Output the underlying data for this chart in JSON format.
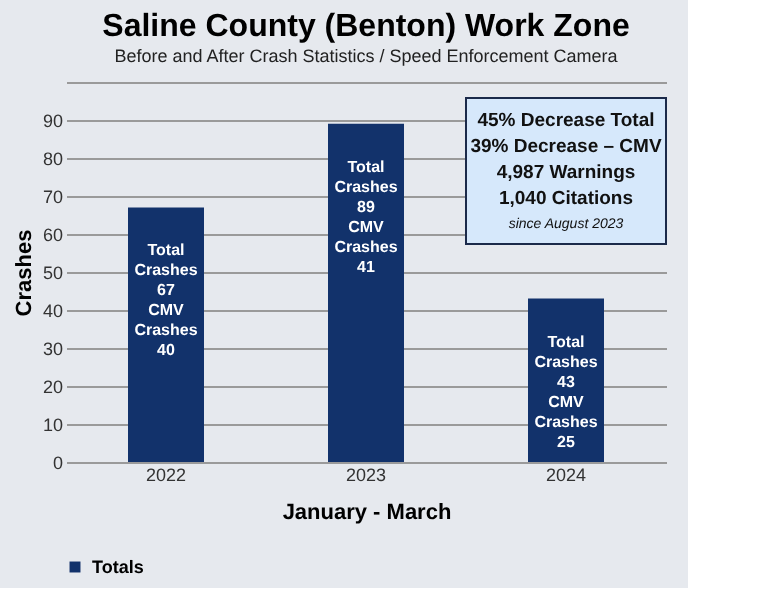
{
  "chart_data": {
    "type": "bar",
    "title": "Saline County (Benton) Work Zone",
    "subtitle": "Before and After Crash Statistics / Speed Enforcement Camera",
    "xlabel": "January - March",
    "ylabel": "Crashes",
    "categories": [
      "2022",
      "2023",
      "2024"
    ],
    "series": [
      {
        "name": "Totals",
        "color": "#12326b",
        "values": [
          67,
          89,
          43
        ],
        "value_labels": [
          "Total Crashes 67 CMV Crashes 40",
          "Total Crashes 89 CMV Crashes 41",
          "Total Crashes 43 CMV Crashes 25"
        ]
      }
    ],
    "ylim": [
      0,
      100
    ],
    "yticks": [
      0,
      10,
      20,
      30,
      40,
      50,
      60,
      70,
      80,
      90,
      {
        "value": 100,
        "label": null
      }
    ],
    "grid": "y",
    "legend": "bottom",
    "annotations": [
      "45% Decrease Total",
      "39% Decrease – CMV",
      "4,987 Warnings",
      "1,040 Citations",
      "since August 2023"
    ]
  }
}
